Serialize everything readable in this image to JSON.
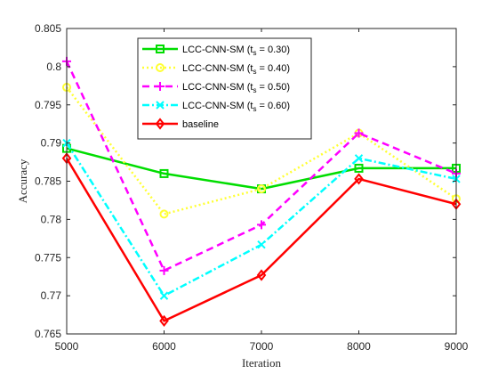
{
  "chart_data": {
    "type": "line",
    "title": "",
    "xlabel": "Iteration",
    "ylabel": "Accuracy",
    "x": [
      5000,
      6000,
      7000,
      8000,
      9000
    ],
    "xlim": [
      5000,
      9000
    ],
    "ylim": [
      0.765,
      0.805
    ],
    "xticks": [
      "5000",
      "6000",
      "7000",
      "8000",
      "9000"
    ],
    "yticks": [
      "0.765",
      "0.77",
      "0.775",
      "0.78",
      "0.785",
      "0.79",
      "0.795",
      "0.8",
      "0.805"
    ],
    "grid": false,
    "legend_position": "top-center",
    "series": [
      {
        "name": "LCC-CNN-SM (t_s = 0.30)",
        "legend_prefix": "LCC-CNN-SM (t",
        "legend_sub": "s",
        "legend_suffix": " = 0.30)",
        "values": [
          0.7893,
          0.786,
          0.784,
          0.7867,
          0.7867
        ],
        "color": "#00dd00",
        "dash": "",
        "marker": "square"
      },
      {
        "name": "LCC-CNN-SM (t_s = 0.40)",
        "legend_prefix": "LCC-CNN-SM (t",
        "legend_sub": "s",
        "legend_suffix": " = 0.40)",
        "values": [
          0.7973,
          0.7807,
          0.784,
          0.7913,
          0.7827
        ],
        "color": "#ffff33",
        "dash": "2,3",
        "marker": "circle"
      },
      {
        "name": "LCC-CNN-SM (t_s = 0.50)",
        "legend_prefix": "LCC-CNN-SM (t",
        "legend_sub": "s",
        "legend_suffix": " = 0.50)",
        "values": [
          0.8007,
          0.7733,
          0.7793,
          0.7913,
          0.786
        ],
        "color": "#ff00ff",
        "dash": "8,5",
        "marker": "plus"
      },
      {
        "name": "LCC-CNN-SM (t_s = 0.60)",
        "legend_prefix": "LCC-CNN-SM (t",
        "legend_sub": "s",
        "legend_suffix": " = 0.60)",
        "values": [
          0.79,
          0.77,
          0.7767,
          0.788,
          0.7853
        ],
        "color": "#00ffff",
        "dash": "8,3,2,3",
        "marker": "x"
      },
      {
        "name": "baseline",
        "legend_prefix": "baseline",
        "legend_sub": "",
        "legend_suffix": "",
        "values": [
          0.788,
          0.7667,
          0.7727,
          0.7853,
          0.782
        ],
        "color": "#ff0000",
        "dash": "",
        "marker": "diamond"
      }
    ]
  }
}
